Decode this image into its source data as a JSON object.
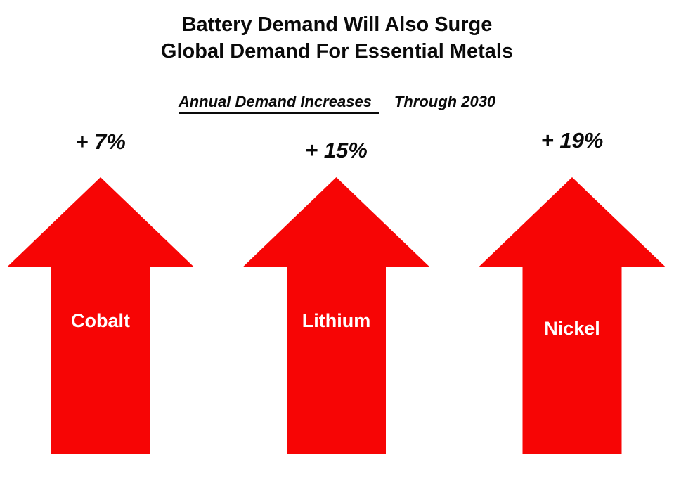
{
  "title": {
    "line1": "Battery Demand Will Also Surge",
    "line2": "Global Demand For Essential Metals"
  },
  "subtitle": {
    "underlined": "Annual Demand Increases",
    "rest": "Through 2030"
  },
  "arrows": [
    {
      "pct": "+ 7%",
      "label": "Cobalt"
    },
    {
      "pct": "+ 15%",
      "label": "Lithium"
    },
    {
      "pct": "+ 19%",
      "label": "Nickel"
    }
  ],
  "colors": {
    "arrow": "#f70505",
    "title_text": "#0a0a0a",
    "arrow_label_text": "#ffffff"
  },
  "chart_data": {
    "type": "bar",
    "title": "Battery Demand Will Also Surge — Global Demand For Essential Metals",
    "subtitle": "Annual Demand Increases Through 2030",
    "categories": [
      "Cobalt",
      "Lithium",
      "Nickel"
    ],
    "values": [
      7,
      15,
      19
    ],
    "value_labels": [
      "+ 7%",
      "+ 15%",
      "+ 19%"
    ],
    "unit": "percent annual demand increase through 2030",
    "ylabel": "Annual Demand Increase (%)",
    "legend": "none",
    "grid": false,
    "marker_style": "upward red arrows"
  }
}
